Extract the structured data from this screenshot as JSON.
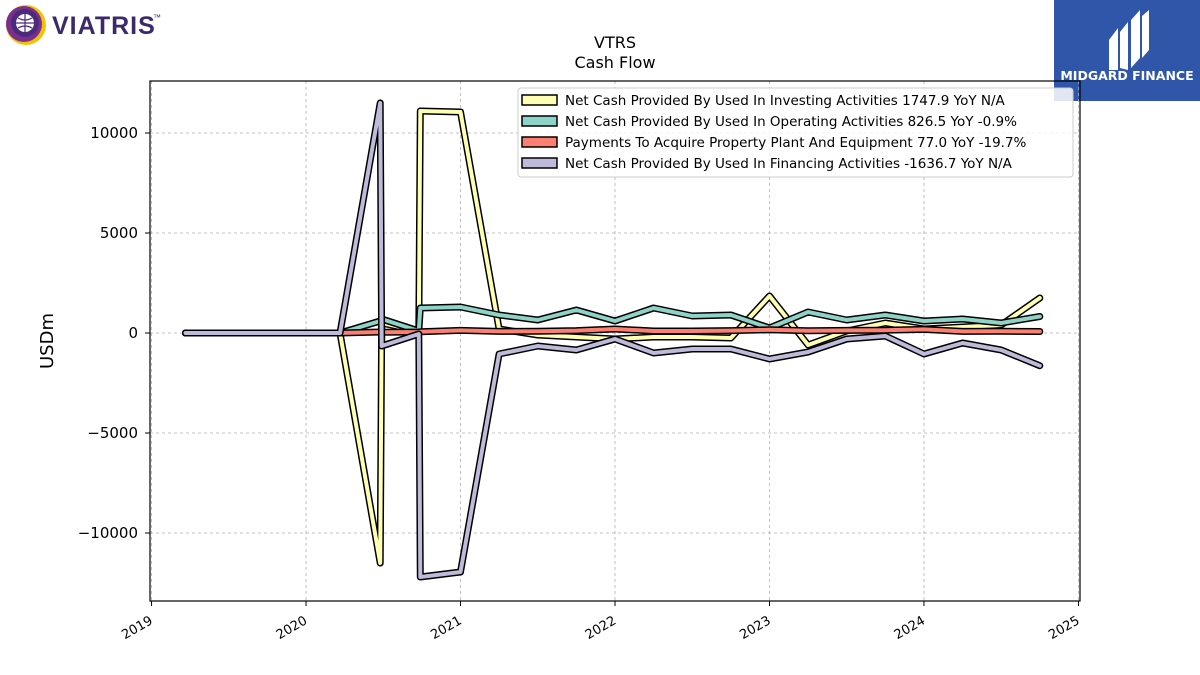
{
  "brand": {
    "left_logo_text": "VIATRIS",
    "left_logo_tm": "™",
    "right_logo_text": "MIDGARD FINANCE",
    "right_logo_color": "#2f56a8"
  },
  "chart_data": {
    "type": "line",
    "title": "VTRS",
    "subtitle": "Cash Flow",
    "ylabel": "USDm",
    "xlabel": "",
    "xlim": [
      2018.99,
      2025.01
    ],
    "ylim": [
      -13400,
      12600
    ],
    "grid": true,
    "legend_position": "top-right",
    "x_ticks": [
      2019,
      2020,
      2021,
      2022,
      2023,
      2024,
      2025
    ],
    "y_ticks": [
      10000,
      5000,
      0,
      -5000,
      -10000
    ],
    "y_tick_labels": [
      "10000",
      "5000",
      "0",
      "−5000",
      "−10000"
    ],
    "series": [
      {
        "name": "Net Cash Provided By Used In Investing Activities  1747.9 YoY N/A",
        "color": "#ffffb3",
        "x": [
          2019.22,
          2019.47,
          2019.72,
          2019.97,
          2020.22,
          2020.48,
          2020.49,
          2020.73,
          2020.74,
          2021.0,
          2021.25,
          2021.5,
          2021.75,
          2022.0,
          2022.25,
          2022.5,
          2022.75,
          2023.0,
          2023.25,
          2023.5,
          2023.75,
          2024.0,
          2024.25,
          2024.5,
          2024.75
        ],
        "values": [
          0,
          0,
          0,
          0,
          0,
          -11500,
          500,
          100,
          11100,
          11050,
          200,
          -100,
          -200,
          -300,
          -200,
          -200,
          -250,
          1850,
          -600,
          100,
          500,
          200,
          300,
          400,
          1748
        ]
      },
      {
        "name": "Net Cash Provided By Used In Operating Activities  826.5 YoY -0.9%",
        "color": "#8dd3c7",
        "x": [
          2019.22,
          2019.47,
          2019.72,
          2019.97,
          2020.22,
          2020.48,
          2020.49,
          2020.73,
          2020.74,
          2021.0,
          2021.25,
          2021.5,
          2021.75,
          2022.0,
          2022.25,
          2022.5,
          2022.75,
          2023.0,
          2023.25,
          2023.5,
          2023.75,
          2024.0,
          2024.25,
          2024.5,
          2024.75
        ],
        "values": [
          0,
          0,
          0,
          0,
          0,
          600,
          700,
          100,
          1250,
          1300,
          900,
          650,
          1150,
          600,
          1250,
          850,
          900,
          250,
          1050,
          650,
          900,
          600,
          700,
          500,
          826
        ]
      },
      {
        "name": "Payments To Acquire Property Plant And Equipment  77.0 YoY -19.7%",
        "color": "#fb8072",
        "x": [
          2019.22,
          2019.47,
          2019.72,
          2019.97,
          2020.22,
          2020.48,
          2020.49,
          2020.73,
          2020.74,
          2021.0,
          2021.25,
          2021.5,
          2021.75,
          2022.0,
          2022.25,
          2022.5,
          2022.75,
          2023.0,
          2023.25,
          2023.5,
          2023.75,
          2024.0,
          2024.25,
          2024.5,
          2024.75
        ],
        "values": [
          0,
          0,
          0,
          0,
          0,
          50,
          40,
          50,
          60,
          130,
          80,
          90,
          120,
          200,
          100,
          100,
          120,
          160,
          110,
          130,
          140,
          180,
          80,
          90,
          77
        ]
      },
      {
        "name": "Net Cash Provided By Used In Financing Activities  -1636.7 YoY N/A",
        "color": "#bebada",
        "x": [
          2019.22,
          2019.47,
          2019.72,
          2019.97,
          2020.22,
          2020.48,
          2020.49,
          2020.73,
          2020.74,
          2021.0,
          2021.25,
          2021.5,
          2021.75,
          2022.0,
          2022.25,
          2022.5,
          2022.75,
          2023.0,
          2023.25,
          2023.5,
          2023.75,
          2024.0,
          2024.25,
          2024.5,
          2024.75
        ],
        "values": [
          0,
          0,
          0,
          0,
          0,
          11500,
          -650,
          -50,
          -12200,
          -11950,
          -1050,
          -650,
          -850,
          -300,
          -1000,
          -800,
          -800,
          -1300,
          -950,
          -300,
          -150,
          -1050,
          -500,
          -850,
          -1637
        ]
      }
    ]
  }
}
